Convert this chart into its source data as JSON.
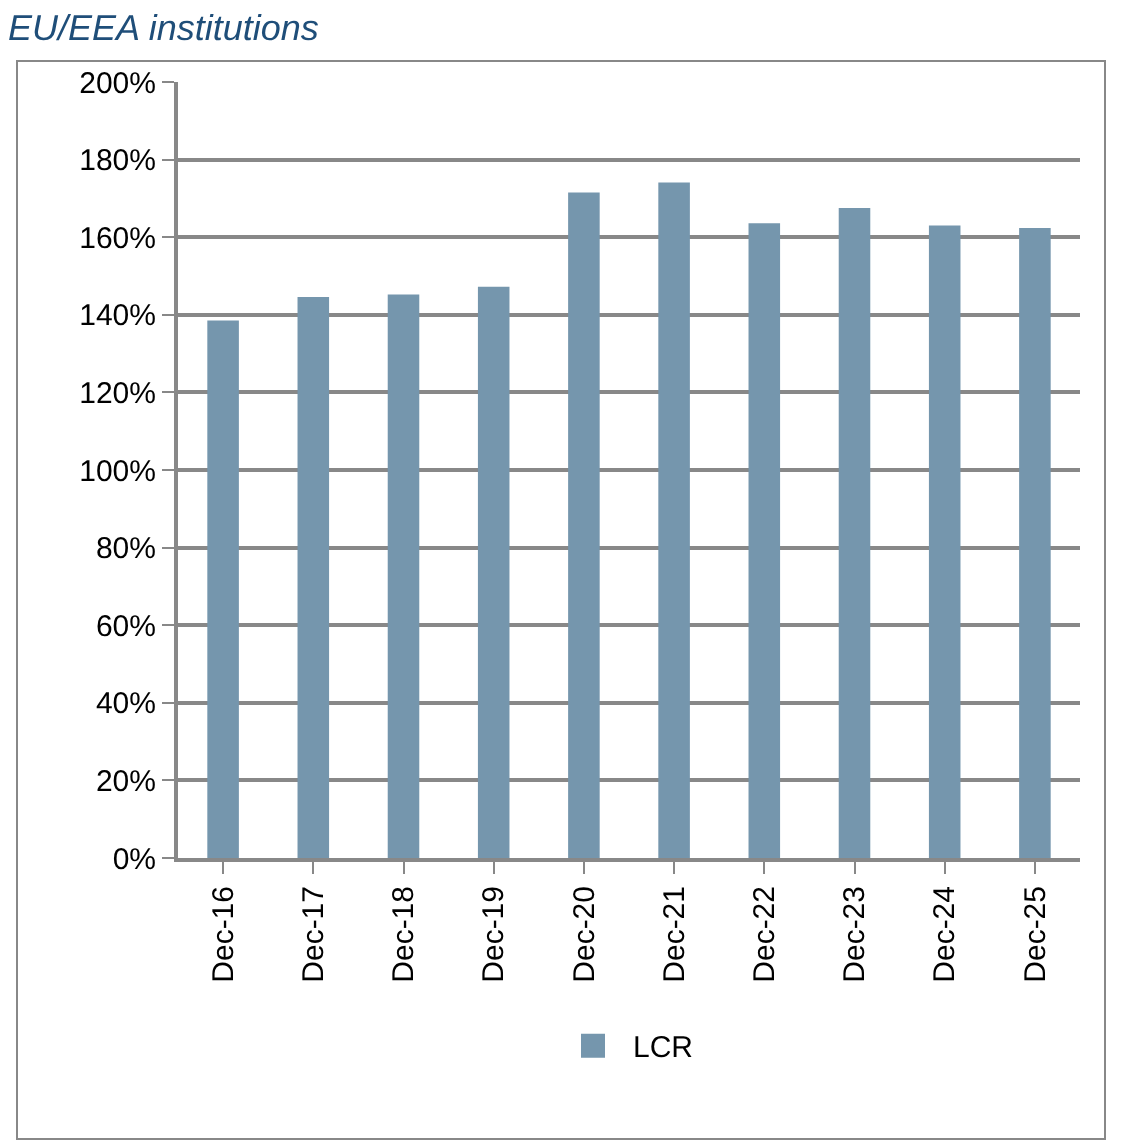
{
  "chart_data": {
    "type": "bar",
    "title": "EU/EEA institutions",
    "categories": [
      "Dec-16",
      "Dec-17",
      "Dec-18",
      "Dec-19",
      "Dec-20",
      "Dec-21",
      "Dec-22",
      "Dec-23",
      "Dec-24",
      "Dec-25"
    ],
    "series": [
      {
        "name": "LCR",
        "color": "#7596ad",
        "values": [
          138.5,
          144.6,
          145.2,
          147.2,
          171.5,
          174.1,
          163.6,
          167.5,
          163.0,
          162.4
        ]
      }
    ],
    "ylim": [
      0,
      200
    ],
    "yticks": [
      {
        "value": 0,
        "label": "0%"
      },
      {
        "value": 20,
        "label": "20%"
      },
      {
        "value": 40,
        "label": "40%"
      },
      {
        "value": 60,
        "label": "60%"
      },
      {
        "value": 80,
        "label": "80%"
      },
      {
        "value": 100,
        "label": "100%"
      },
      {
        "value": 120,
        "label": "120%"
      },
      {
        "value": 140,
        "label": "140%"
      },
      {
        "value": 160,
        "label": "160%"
      },
      {
        "value": 180,
        "label": "180%"
      },
      {
        "value": 200,
        "label": "200%"
      }
    ],
    "grid": "y",
    "legend": "bottom"
  }
}
